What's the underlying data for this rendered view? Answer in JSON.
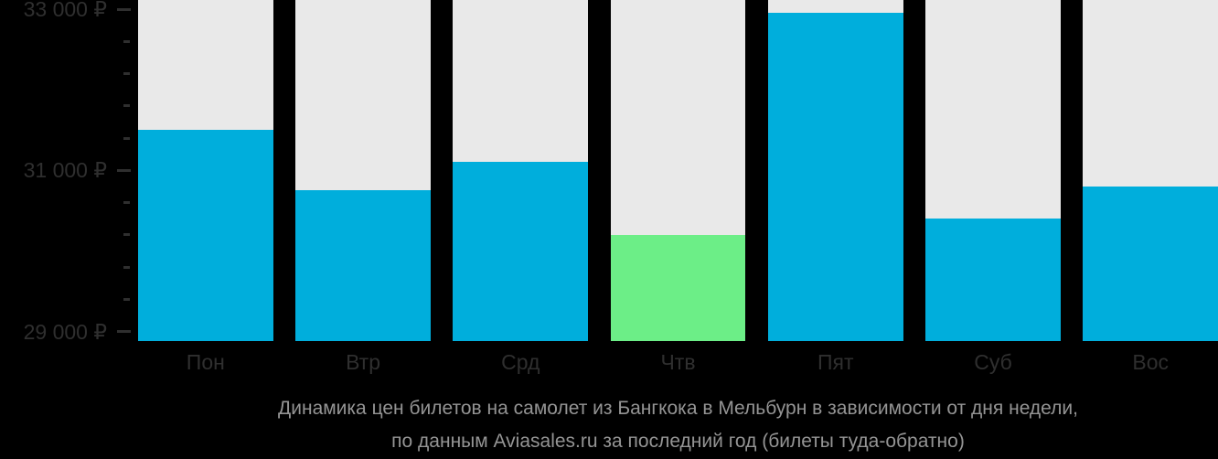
{
  "chart_data": {
    "type": "bar",
    "title": "Динамика цен билетов на самолет из Бангкока в Мельбурн в зависимости от дня недели,",
    "subtitle": "по данным Aviasales.ru за последний год (билеты туда-обратно)",
    "categories": [
      "Пон",
      "Втр",
      "Срд",
      "Чтв",
      "Пят",
      "Суб",
      "Вос"
    ],
    "category_keys": [
      "mon",
      "tue",
      "wed",
      "thu",
      "fri",
      "sat",
      "sun"
    ],
    "values": [
      31500,
      30750,
      31100,
      30200,
      32950,
      30400,
      30800
    ],
    "unit": "₽",
    "xlabel": "",
    "ylabel": "",
    "ylim": [
      29000,
      33000
    ],
    "ytick_major_labels": [
      "33 000 ₽",
      "31 000 ₽",
      "29 000 ₽"
    ],
    "ytick_major_values": [
      33000,
      31000,
      29000
    ],
    "minor_ticks_between_majors": 4,
    "highlight_index": 3,
    "grid": "off",
    "legend": "none",
    "colors": {
      "bar": "#00AEDC",
      "highlight_bar": "#6CEE87",
      "column_track": "#E9E9E9",
      "background": "#000000",
      "axis_text": "#2F2F2F",
      "caption_text": "#949494"
    }
  }
}
